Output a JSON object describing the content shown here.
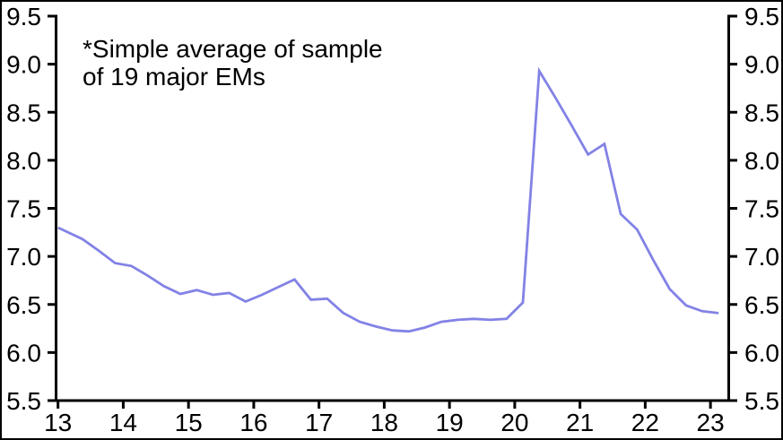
{
  "frame": {
    "background": "#ffffff",
    "border_color": "#000000"
  },
  "chart_data": {
    "type": "line",
    "title": "",
    "annotation": {
      "line1": "*Simple average of sample",
      "line2": "of 19 major EMs"
    },
    "series": [
      {
        "name": "simple-average-of-19-major-EMs",
        "color": "#8282E6",
        "x": [
          13.0,
          13.375,
          13.625,
          13.875,
          14.125,
          14.375,
          14.625,
          14.875,
          15.125,
          15.375,
          15.625,
          15.875,
          16.125,
          16.375,
          16.625,
          16.875,
          17.125,
          17.375,
          17.625,
          17.875,
          18.125,
          18.375,
          18.625,
          18.875,
          19.125,
          19.375,
          19.625,
          19.875,
          20.125,
          20.375,
          20.625,
          20.875,
          21.125,
          21.375,
          21.625,
          21.875,
          22.125,
          22.375,
          22.625,
          22.875,
          23.125
        ],
        "values": [
          7.3,
          7.18,
          7.06,
          6.93,
          6.9,
          6.8,
          6.69,
          6.61,
          6.65,
          6.6,
          6.62,
          6.53,
          6.6,
          6.68,
          6.76,
          6.55,
          6.56,
          6.41,
          6.32,
          6.27,
          6.23,
          6.22,
          6.26,
          6.32,
          6.34,
          6.35,
          6.34,
          6.35,
          6.52,
          8.93,
          8.65,
          8.36,
          8.06,
          8.17,
          7.44,
          7.28,
          6.96,
          6.66,
          6.49,
          6.43,
          6.41
        ]
      }
    ],
    "x_ticks": [
      13,
      14,
      15,
      16,
      17,
      18,
      19,
      20,
      21,
      22,
      23
    ],
    "y_ticks": [
      5.5,
      6.0,
      6.5,
      7.0,
      7.5,
      8.0,
      8.5,
      9.0,
      9.5
    ],
    "y_tick_decimals": 1,
    "xlim": [
      12.97,
      23.28
    ],
    "ylim": [
      5.5,
      9.5
    ],
    "grid": false,
    "legend": "none",
    "dual_y_axis": true,
    "axis_color": "#000000"
  }
}
